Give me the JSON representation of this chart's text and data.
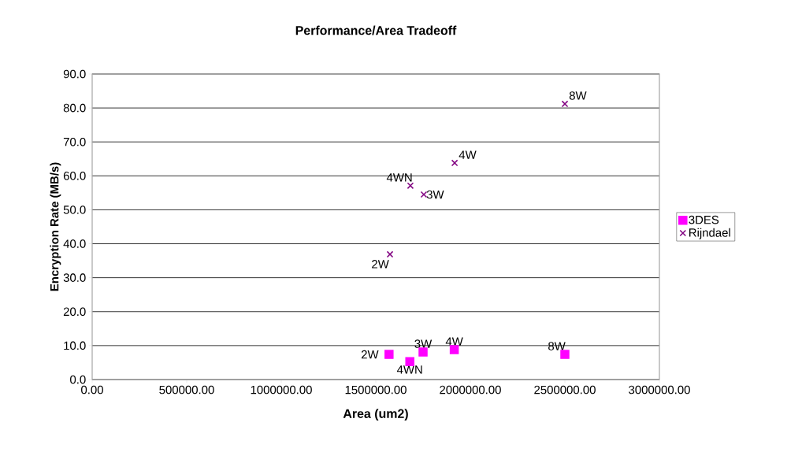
{
  "chart_data": {
    "type": "scatter",
    "title": "Performance/Area Tradeoff",
    "xlabel": "Area (um2)",
    "ylabel": "Encryption Rate (MB/s)",
    "xlim": [
      0,
      3000000
    ],
    "ylim": [
      0,
      90
    ],
    "xticks": [
      {
        "value": 0,
        "label": "0.00"
      },
      {
        "value": 500000,
        "label": "500000.00"
      },
      {
        "value": 1000000,
        "label": "1000000.00"
      },
      {
        "value": 1500000,
        "label": "1500000.00"
      },
      {
        "value": 2000000,
        "label": "2000000.00"
      },
      {
        "value": 2500000,
        "label": "2500000.00"
      },
      {
        "value": 3000000,
        "label": "3000000.00"
      }
    ],
    "yticks": [
      {
        "value": 0,
        "label": "0.0"
      },
      {
        "value": 10,
        "label": "10.0"
      },
      {
        "value": 20,
        "label": "20.0"
      },
      {
        "value": 30,
        "label": "30.0"
      },
      {
        "value": 40,
        "label": "40.0"
      },
      {
        "value": 50,
        "label": "50.0"
      },
      {
        "value": 60,
        "label": "60.0"
      },
      {
        "value": 70,
        "label": "70.0"
      },
      {
        "value": 80,
        "label": "80.0"
      },
      {
        "value": 90,
        "label": "90.0"
      }
    ],
    "grid": "y",
    "legend": "right",
    "series": [
      {
        "name": "3DES",
        "color": "#ff00ff",
        "marker": "square",
        "x": [
          1570000,
          1680000,
          1750000,
          1915000,
          2500000
        ],
        "values": [
          7.4,
          5.3,
          8.1,
          8.8,
          7.4
        ]
      },
      {
        "name": "Rijndael",
        "color": "#800080",
        "marker": "cross",
        "x": [
          1575000,
          1683000,
          1754000,
          1917000,
          2500000
        ],
        "values": [
          36.9,
          57.1,
          54.5,
          63.8,
          81.2
        ]
      }
    ],
    "annotations": [
      {
        "text": "2W",
        "x": 1570000,
        "y": 7.4
      },
      {
        "text": "4WN",
        "x": 1680000,
        "y": 5.3
      },
      {
        "text": "3W",
        "x": 1750000,
        "y": 8.1
      },
      {
        "text": "4W",
        "x": 1915000,
        "y": 8.8
      },
      {
        "text": "8W",
        "x": 2500000,
        "y": 7.4
      },
      {
        "text": "2W",
        "x": 1575000,
        "y": 36.9
      },
      {
        "text": "4WN",
        "x": 1683000,
        "y": 57.1
      },
      {
        "text": "3W",
        "x": 1754000,
        "y": 54.5
      },
      {
        "text": "4W",
        "x": 1917000,
        "y": 63.8
      },
      {
        "text": "8W",
        "x": 2500000,
        "y": 81.2
      }
    ]
  }
}
